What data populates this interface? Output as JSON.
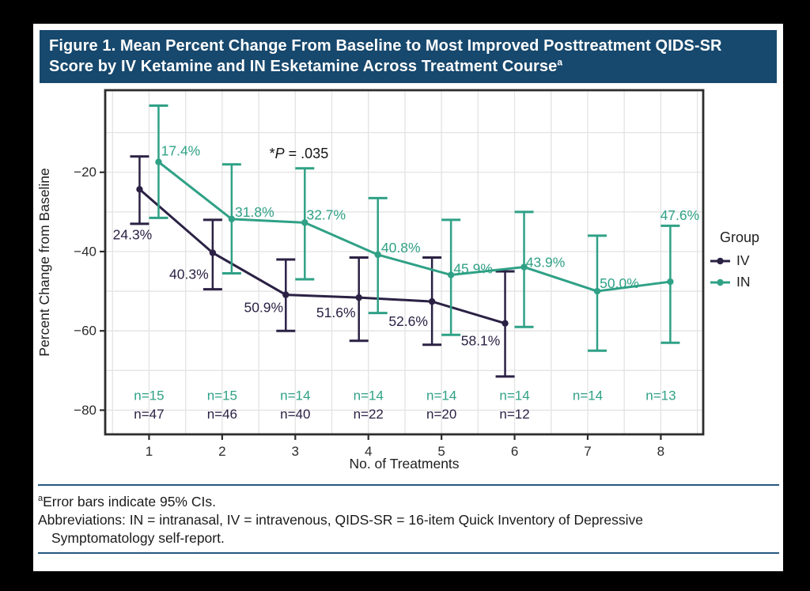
{
  "figure": {
    "title": "Figure 1. Mean Percent Change From Baseline to Most Improved Posttreatment QIDS-SR Score by IV Ketamine and IN Esketamine Across Treatment Course",
    "title_marker": "a"
  },
  "chart_data": {
    "type": "line",
    "title": "Mean Percent Change From Baseline to Most Improved Posttreatment QIDS-SR Score by IV Ketamine and IN Esketamine Across Treatment Course",
    "xlabel": "No. of Treatments",
    "ylabel": "Percent Change from Baseline",
    "xlim": [
      0.4,
      8.58
    ],
    "ylim": [
      -86.1,
      0.7
    ],
    "grid": true,
    "xticks": [
      {
        "v": 1,
        "label": "1"
      },
      {
        "v": 2,
        "label": "2"
      },
      {
        "v": 3,
        "label": "3"
      },
      {
        "v": 4,
        "label": "4"
      },
      {
        "v": 5,
        "label": "5"
      },
      {
        "v": 6,
        "label": "6"
      },
      {
        "v": 7,
        "label": "7"
      },
      {
        "v": 8,
        "label": "8"
      }
    ],
    "yticks": [
      {
        "v": -20,
        "label": "−20"
      },
      {
        "v": -40,
        "label": "−40"
      },
      {
        "v": -60,
        "label": "−60"
      },
      {
        "v": -80,
        "label": "−80"
      }
    ],
    "legend": {
      "title": "Group",
      "position": "right",
      "entries": [
        "IV",
        "IN"
      ]
    },
    "annotation": {
      "text": "*P = .035",
      "pre": "*",
      "italic": "P",
      "post": " = .035",
      "x": 3.05,
      "y": -16.5
    },
    "series": [
      {
        "name": "IV",
        "color": "#2B2144",
        "dodge": -12,
        "points": [
          {
            "x": 1,
            "y": -24.3,
            "label": "24.3%",
            "ci_high": -16.0,
            "ci_low": -33.0,
            "label_dx": -9,
            "label_dy": 57
          },
          {
            "x": 2,
            "y": -40.3,
            "label": "40.3%",
            "ci_high": -32.0,
            "ci_low": -49.5,
            "label_dx": -30,
            "label_dy": 27
          },
          {
            "x": 3,
            "y": -50.9,
            "label": "50.9%",
            "ci_high": -42.0,
            "ci_low": -60.0,
            "label_dx": -28,
            "label_dy": 16
          },
          {
            "x": 4,
            "y": -51.6,
            "label": "51.6%",
            "ci_high": -41.5,
            "ci_low": -62.5,
            "label_dx": -29,
            "label_dy": 19
          },
          {
            "x": 5,
            "y": -52.6,
            "label": "52.6%",
            "ci_high": -41.5,
            "ci_low": -63.5,
            "label_dx": -30,
            "label_dy": 25
          },
          {
            "x": 6,
            "y": -58.1,
            "label": "58.1%",
            "ci_high": -45.0,
            "ci_low": -71.5,
            "label_dx": -31,
            "label_dy": 22
          }
        ]
      },
      {
        "name": "IN",
        "color": "#2FA186",
        "dodge": 12,
        "points": [
          {
            "x": 1,
            "y": -17.4,
            "label": "17.4%",
            "ci_high": -3.2,
            "ci_low": -31.5,
            "label_dx": 28,
            "label_dy": -14
          },
          {
            "x": 2,
            "y": -31.8,
            "label": "31.8%",
            "ci_high": -18.0,
            "ci_low": -45.5,
            "label_dx": 29,
            "label_dy": -9
          },
          {
            "x": 3,
            "y": -32.7,
            "label": "32.7%",
            "ci_high": -19.0,
            "ci_low": -47.0,
            "label_dx": 27,
            "label_dy": -10
          },
          {
            "x": 4,
            "y": -40.8,
            "label": "40.8%",
            "ci_high": -26.5,
            "ci_low": -55.5,
            "label_dx": 29,
            "label_dy": -9
          },
          {
            "x": 5,
            "y": -45.9,
            "label": "45.9%",
            "ci_high": -32.0,
            "ci_low": -61.0,
            "label_dx": 28,
            "label_dy": -8
          },
          {
            "x": 6,
            "y": -43.9,
            "label": "43.9%",
            "ci_high": -30.0,
            "ci_low": -59.0,
            "label_dx": 27,
            "label_dy": -6
          },
          {
            "x": 7,
            "y": -50.0,
            "label": "50.0%",
            "ci_high": -36.0,
            "ci_low": -65.0,
            "label_dx": 28,
            "label_dy": -10
          },
          {
            "x": 8,
            "y": -47.6,
            "label": "47.6%",
            "ci_high": -33.5,
            "ci_low": -63.0,
            "label_dx": 12,
            "label_dy": -84
          }
        ]
      }
    ],
    "n_rows": [
      {
        "series": "IN",
        "y": -76.3,
        "values": [
          "n=15",
          "n=15",
          "n=14",
          "n=14",
          "n=14",
          "n=14",
          "n=14",
          "n=13"
        ]
      },
      {
        "series": "IV",
        "y": -81.0,
        "values": [
          "n=47",
          "n=46",
          "n=40",
          "n=22",
          "n=20",
          "n=12"
        ]
      }
    ]
  },
  "footnotes": {
    "marker": "a",
    "line1": "Error bars indicate 95% CIs.",
    "line2": "Abbreviations: IN = intranasal, IV = intravenous, QIDS-SR = 16-item Quick Inventory of Depressive",
    "line3": "Symptomatology self-report."
  },
  "colors": {
    "title_bar": "#17486D",
    "iv": "#2B2144",
    "in": "#2FA186",
    "rule": "#24597F",
    "grid": "#E3E3E3",
    "plot_border": "#2D2D2D",
    "tick": "#2D2D2D",
    "text": "#1B1B1B"
  }
}
